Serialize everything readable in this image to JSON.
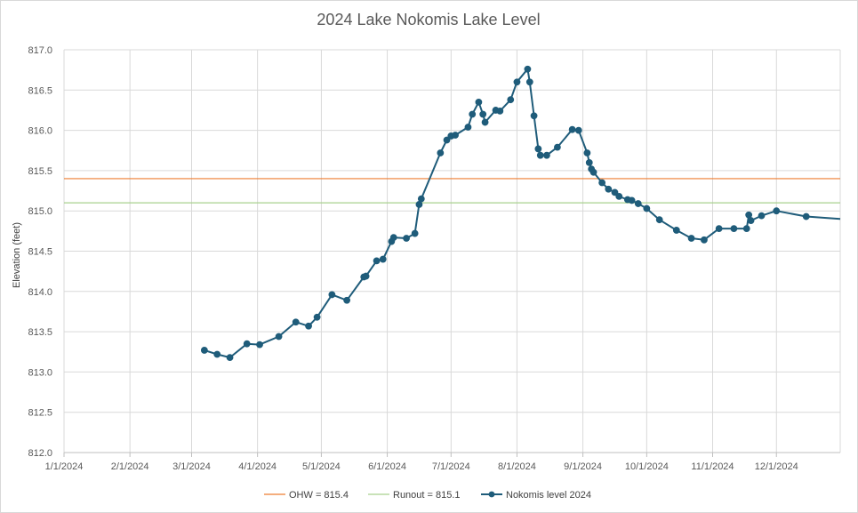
{
  "chart_data": {
    "type": "line",
    "title": "2024 Lake Nokomis Lake Level",
    "ylabel": "Elevation (feet)",
    "xlabel": "",
    "xlim": [
      "2024-01-01",
      "2024-12-31"
    ],
    "ylim": [
      812.0,
      817.0
    ],
    "y_ticks": [
      "812.0",
      "812.5",
      "813.0",
      "813.5",
      "814.0",
      "814.5",
      "815.0",
      "815.5",
      "816.0",
      "816.5",
      "817.0"
    ],
    "x_ticks": [
      {
        "date": "2024-01-01",
        "label": "1/1/2024"
      },
      {
        "date": "2024-02-01",
        "label": "2/1/2024"
      },
      {
        "date": "2024-03-01",
        "label": "3/1/2024"
      },
      {
        "date": "2024-04-01",
        "label": "4/1/2024"
      },
      {
        "date": "2024-05-01",
        "label": "5/1/2024"
      },
      {
        "date": "2024-06-01",
        "label": "6/1/2024"
      },
      {
        "date": "2024-07-01",
        "label": "7/1/2024"
      },
      {
        "date": "2024-08-01",
        "label": "8/1/2024"
      },
      {
        "date": "2024-09-01",
        "label": "9/1/2024"
      },
      {
        "date": "2024-10-01",
        "label": "10/1/2024"
      },
      {
        "date": "2024-11-01",
        "label": "11/1/2024"
      },
      {
        "date": "2024-12-01",
        "label": "12/1/2024"
      }
    ],
    "grid": true,
    "legend_position": "bottom",
    "series": [
      {
        "name": "OHW = 815.4",
        "type": "reference",
        "value": 815.4,
        "color": "#ED7D31"
      },
      {
        "name": "Runout = 815.1",
        "type": "reference",
        "value": 815.1,
        "color": "#A9D18E"
      },
      {
        "name": "Nokomis level 2024",
        "type": "line-markers",
        "color": "#1F5C7A",
        "points": [
          [
            "2024-03-07",
            813.27
          ],
          [
            "2024-03-13",
            813.22
          ],
          [
            "2024-03-19",
            813.18
          ],
          [
            "2024-03-27",
            813.35
          ],
          [
            "2024-04-02",
            813.34
          ],
          [
            "2024-04-11",
            813.44
          ],
          [
            "2024-04-19",
            813.62
          ],
          [
            "2024-04-25",
            813.57
          ],
          [
            "2024-04-29",
            813.68
          ],
          [
            "2024-05-06",
            813.96
          ],
          [
            "2024-05-13",
            813.89
          ],
          [
            "2024-05-21",
            814.18
          ],
          [
            "2024-05-22",
            814.19
          ],
          [
            "2024-05-27",
            814.38
          ],
          [
            "2024-05-30",
            814.4
          ],
          [
            "2024-06-03",
            814.62
          ],
          [
            "2024-06-04",
            814.67
          ],
          [
            "2024-06-10",
            814.66
          ],
          [
            "2024-06-14",
            814.72
          ],
          [
            "2024-06-16",
            815.08
          ],
          [
            "2024-06-17",
            815.15
          ],
          [
            "2024-06-26",
            815.72
          ],
          [
            "2024-06-29",
            815.88
          ],
          [
            "2024-07-01",
            815.93
          ],
          [
            "2024-07-03",
            815.94
          ],
          [
            "2024-07-09",
            816.04
          ],
          [
            "2024-07-11",
            816.2
          ],
          [
            "2024-07-14",
            816.35
          ],
          [
            "2024-07-16",
            816.2
          ],
          [
            "2024-07-17",
            816.1
          ],
          [
            "2024-07-22",
            816.25
          ],
          [
            "2024-07-24",
            816.24
          ],
          [
            "2024-07-29",
            816.38
          ],
          [
            "2024-08-01",
            816.6
          ],
          [
            "2024-08-06",
            816.76
          ],
          [
            "2024-08-07",
            816.6
          ],
          [
            "2024-08-09",
            816.18
          ],
          [
            "2024-08-11",
            815.77
          ],
          [
            "2024-08-12",
            815.69
          ],
          [
            "2024-08-15",
            815.69
          ],
          [
            "2024-08-20",
            815.79
          ],
          [
            "2024-08-27",
            816.01
          ],
          [
            "2024-08-30",
            816.0
          ],
          [
            "2024-09-03",
            815.72
          ],
          [
            "2024-09-04",
            815.6
          ],
          [
            "2024-09-05",
            815.52
          ],
          [
            "2024-09-06",
            815.48
          ],
          [
            "2024-09-10",
            815.35
          ],
          [
            "2024-09-13",
            815.27
          ],
          [
            "2024-09-16",
            815.23
          ],
          [
            "2024-09-18",
            815.18
          ],
          [
            "2024-09-22",
            815.14
          ],
          [
            "2024-09-24",
            815.13
          ],
          [
            "2024-09-27",
            815.09
          ],
          [
            "2024-10-01",
            815.03
          ],
          [
            "2024-10-07",
            814.89
          ],
          [
            "2024-10-15",
            814.76
          ],
          [
            "2024-10-22",
            814.66
          ],
          [
            "2024-10-28",
            814.64
          ],
          [
            "2024-11-04",
            814.78
          ],
          [
            "2024-11-11",
            814.78
          ],
          [
            "2024-11-17",
            814.78
          ],
          [
            "2024-11-18",
            814.95
          ],
          [
            "2024-11-19",
            814.88
          ],
          [
            "2024-11-24",
            814.94
          ],
          [
            "2024-12-01",
            815.0
          ],
          [
            "2024-12-15",
            814.93
          ],
          [
            "2024-12-31",
            814.9
          ]
        ]
      }
    ]
  }
}
